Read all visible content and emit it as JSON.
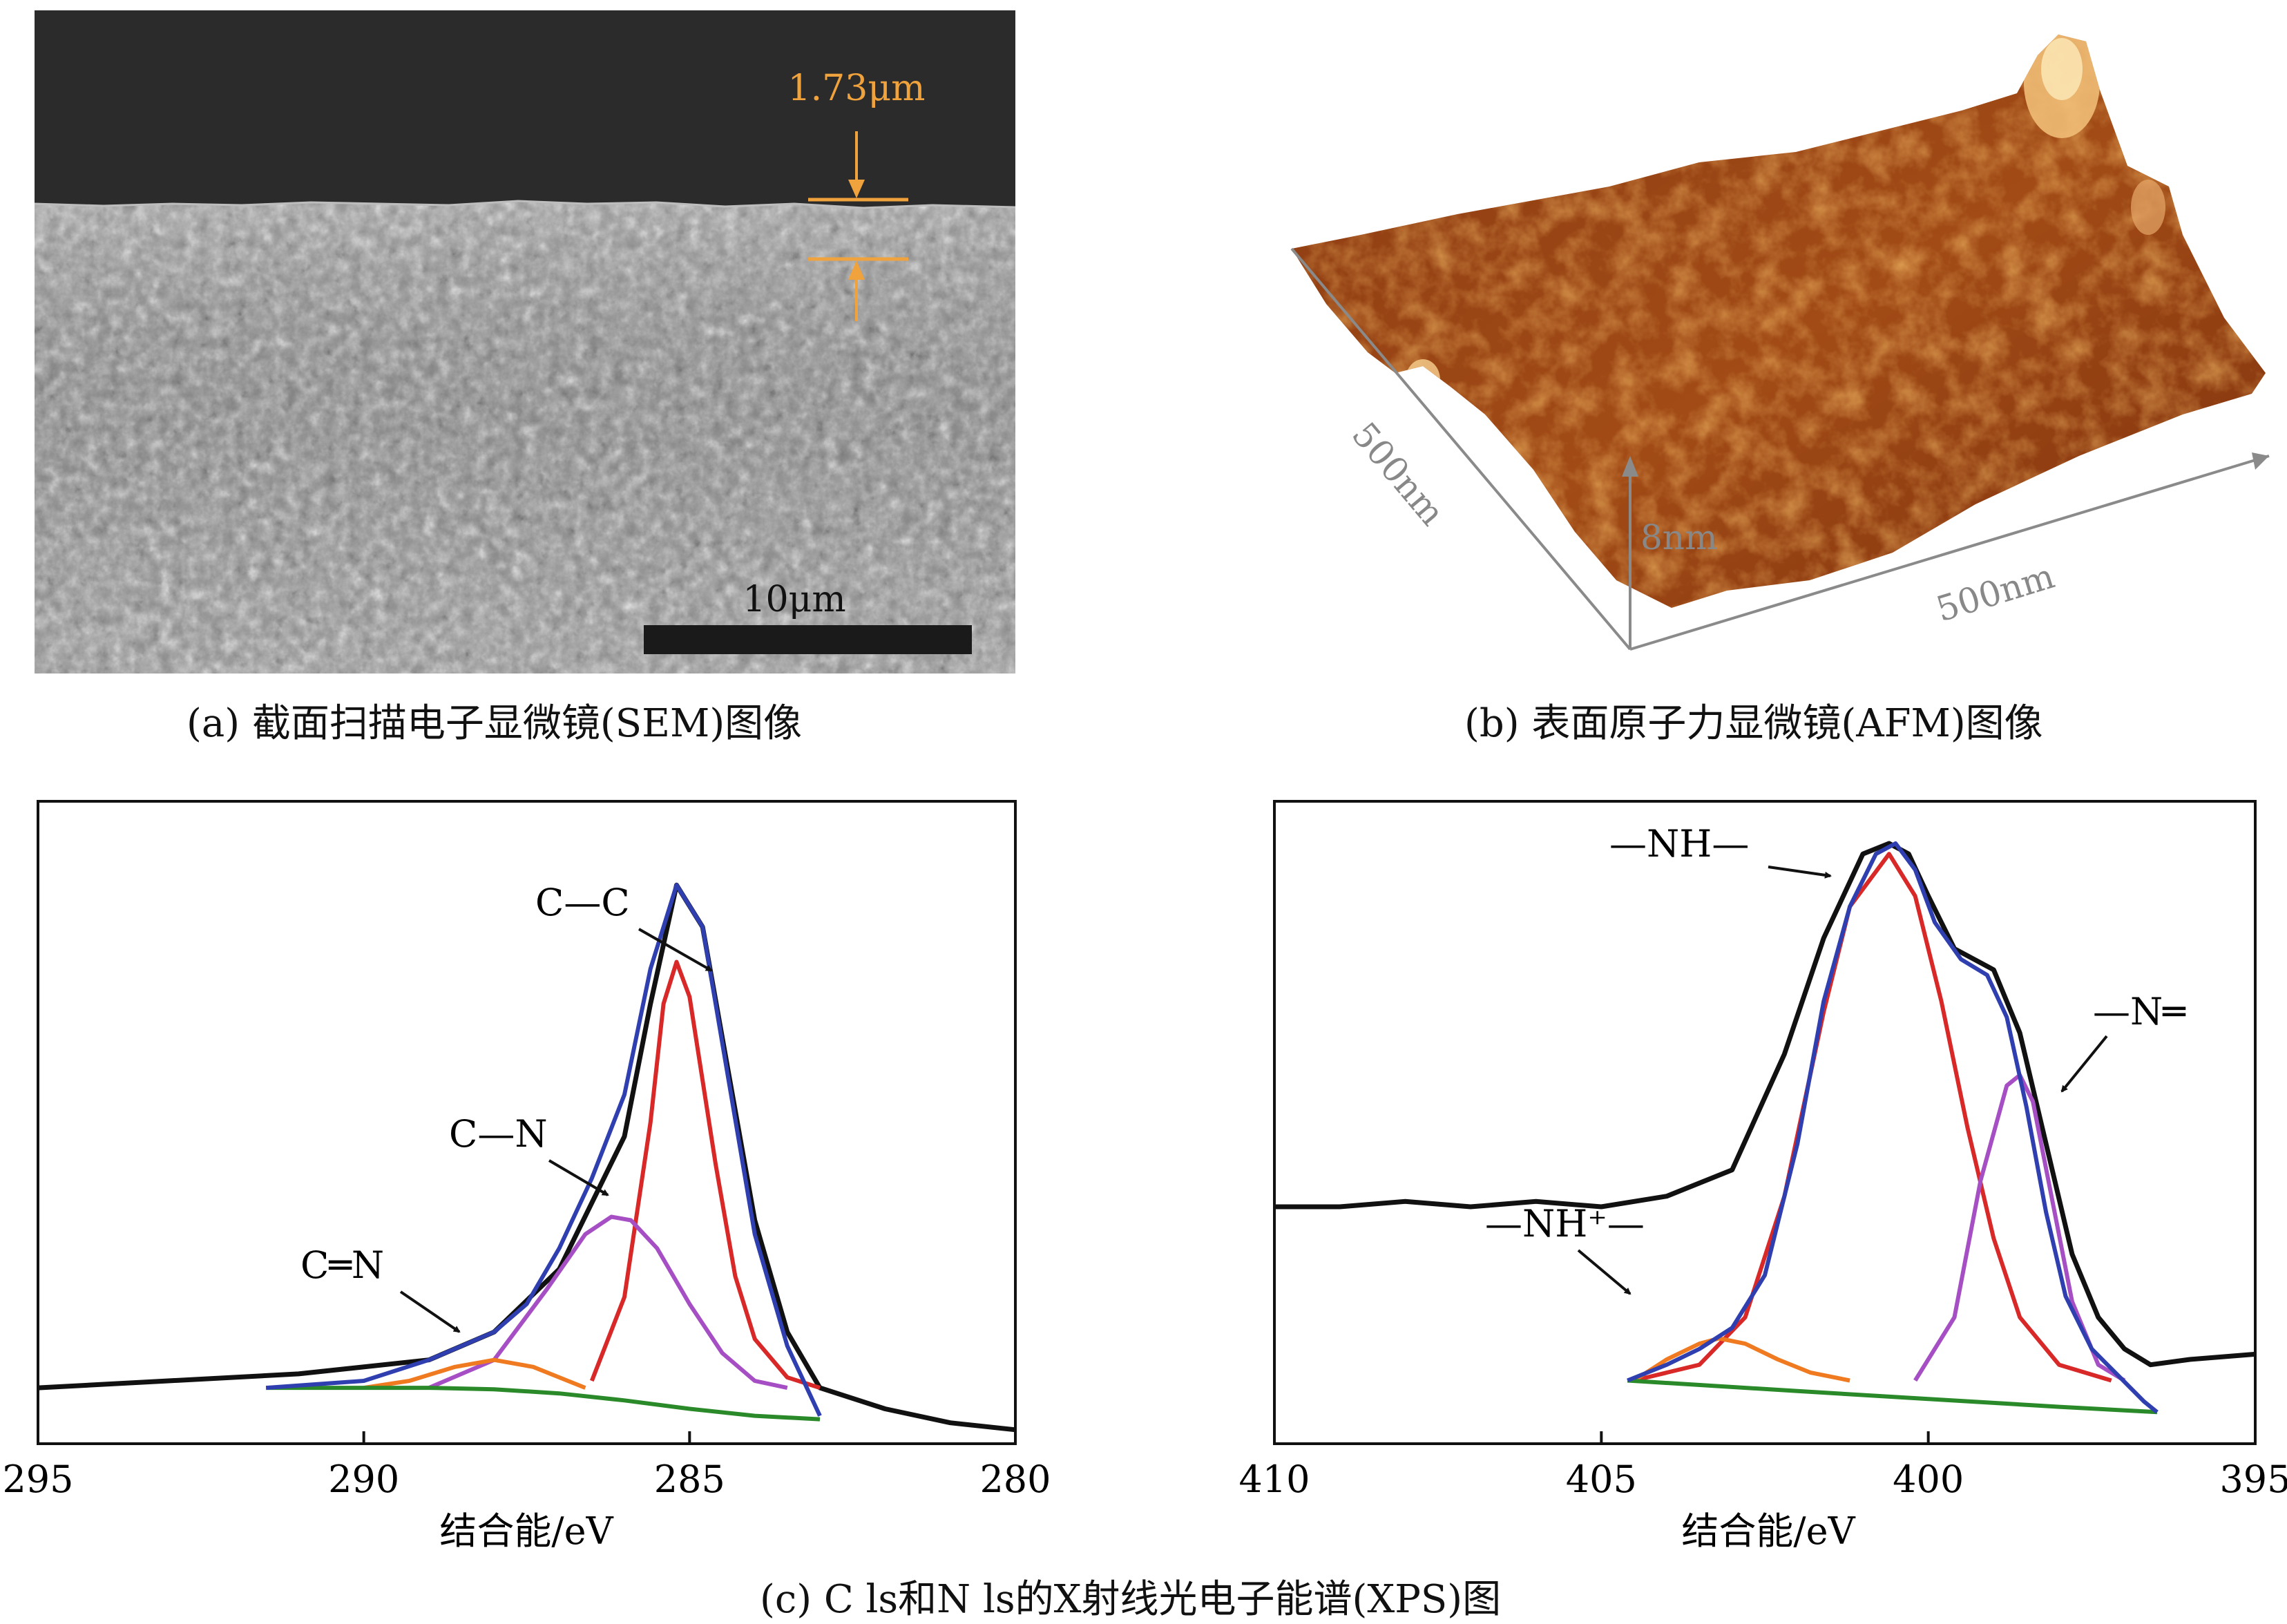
{
  "panel_a": {
    "caption": "(a) 截面扫描电子显微镜(SEM)图像",
    "thickness_label": "1.73μm",
    "scalebar_label": "10μm",
    "accent_color": "#f0a23c"
  },
  "panel_b": {
    "caption": "(b) 表面原子力显微镜(AFM)图像",
    "axis_left_label": "500nm",
    "axis_right_label": "500nm",
    "height_label": "8nm"
  },
  "caption_c": "(c) C ls和N ls的X射线光电子能谱(XPS)图",
  "chart_data": [
    {
      "type": "line",
      "xlabel": "结合能/eV",
      "xlim": [
        295,
        280
      ],
      "x_ticks": [
        295,
        290,
        285,
        280
      ],
      "annotations": [
        "C—C",
        "C—N",
        "C═N"
      ],
      "series": [
        {
          "color": "#111111",
          "x": [
            295,
            293,
            291,
            289,
            288,
            287,
            286,
            285.6,
            285.2,
            284.8,
            284.4,
            284,
            283.5,
            283,
            282,
            281,
            280
          ],
          "y": [
            0.0,
            0.01,
            0.02,
            0.04,
            0.08,
            0.17,
            0.36,
            0.55,
            0.72,
            0.66,
            0.45,
            0.24,
            0.08,
            0.0,
            -0.03,
            -0.05,
            -0.06
          ]
        },
        {
          "color": "#d82828",
          "x": [
            286.5,
            286,
            285.6,
            285.4,
            285.2,
            285.0,
            284.8,
            284.6,
            284.3,
            284,
            283.5,
            283
          ],
          "y": [
            0.01,
            0.13,
            0.38,
            0.55,
            0.61,
            0.56,
            0.44,
            0.32,
            0.16,
            0.07,
            0.015,
            0.0
          ]
        },
        {
          "color": "#a64fc4",
          "x": [
            289,
            288,
            287.2,
            286.6,
            286.2,
            285.9,
            285.5,
            285,
            284.5,
            284,
            283.5
          ],
          "y": [
            0.0,
            0.04,
            0.14,
            0.22,
            0.245,
            0.24,
            0.2,
            0.12,
            0.05,
            0.01,
            0.0
          ]
        },
        {
          "color": "#f07a20",
          "x": [
            290,
            289.3,
            288.6,
            288.0,
            287.4,
            287.0,
            286.6
          ],
          "y": [
            0.0,
            0.01,
            0.03,
            0.04,
            0.03,
            0.015,
            0.0
          ]
        },
        {
          "color": "#2a8a2a",
          "x": [
            291.5,
            289,
            288,
            287,
            286,
            285,
            284,
            283
          ],
          "y": [
            0.0,
            0.0,
            -0.002,
            -0.008,
            -0.018,
            -0.03,
            -0.04,
            -0.045
          ]
        },
        {
          "color": "#2f3fb0",
          "x": [
            291.5,
            290,
            289,
            288.5,
            288,
            287.5,
            287,
            286.5,
            286,
            285.6,
            285.2,
            284.8,
            284.4,
            284,
            283.5,
            283
          ],
          "y": [
            0.0,
            0.01,
            0.04,
            0.06,
            0.08,
            0.12,
            0.2,
            0.3,
            0.42,
            0.6,
            0.72,
            0.66,
            0.44,
            0.22,
            0.06,
            -0.04
          ]
        }
      ]
    },
    {
      "type": "line",
      "xlabel": "结合能/eV",
      "xlim": [
        410,
        395
      ],
      "x_ticks": [
        410,
        405,
        400,
        395
      ],
      "annotations": [
        "—NH—",
        "—N═",
        "—NH⁺—"
      ],
      "series": [
        {
          "color": "#111111",
          "x": [
            410,
            409,
            408,
            407,
            406,
            405,
            404,
            403,
            402.2,
            401.6,
            401,
            400.6,
            400.3,
            400,
            399.6,
            399,
            398.6,
            398.2,
            397.8,
            397.4,
            397,
            396.6,
            396,
            395
          ],
          "y": [
            0.33,
            0.33,
            0.34,
            0.33,
            0.34,
            0.33,
            0.35,
            0.4,
            0.62,
            0.84,
            1.0,
            1.02,
            1.0,
            0.92,
            0.82,
            0.78,
            0.66,
            0.45,
            0.24,
            0.12,
            0.06,
            0.03,
            0.04,
            0.05
          ]
        },
        {
          "color": "#d82828",
          "x": [
            404.5,
            403.5,
            402.8,
            402.2,
            401.6,
            401.2,
            400.6,
            400.2,
            399.8,
            399.4,
            399,
            398.6,
            398,
            397.2
          ],
          "y": [
            0.0,
            0.03,
            0.12,
            0.35,
            0.7,
            0.9,
            1.0,
            0.92,
            0.72,
            0.48,
            0.27,
            0.12,
            0.03,
            0.0
          ]
        },
        {
          "color": "#a64fc4",
          "x": [
            400.2,
            399.6,
            399.2,
            398.8,
            398.6,
            398.4,
            398.1,
            397.8,
            397.4,
            397
          ],
          "y": [
            0.0,
            0.12,
            0.38,
            0.56,
            0.58,
            0.53,
            0.34,
            0.15,
            0.03,
            0.0
          ]
        },
        {
          "color": "#f07a20",
          "x": [
            404.5,
            404,
            403.5,
            403.2,
            402.8,
            402.3,
            401.8,
            401.2
          ],
          "y": [
            0.0,
            0.04,
            0.07,
            0.08,
            0.07,
            0.04,
            0.015,
            0.0
          ]
        },
        {
          "color": "#2a8a2a",
          "x": [
            404.6,
            402,
            400,
            398,
            396.5
          ],
          "y": [
            0.0,
            -0.02,
            -0.035,
            -0.05,
            -0.06
          ]
        },
        {
          "color": "#2f3fb0",
          "x": [
            404.6,
            404,
            403.5,
            403,
            402.5,
            402,
            401.6,
            401.2,
            400.8,
            400.5,
            400.2,
            399.9,
            399.5,
            399.1,
            398.8,
            398.5,
            398.2,
            397.9,
            397.5,
            397.1,
            396.7,
            396.5
          ],
          "y": [
            0.0,
            0.03,
            0.06,
            0.1,
            0.2,
            0.45,
            0.72,
            0.9,
            1.0,
            1.02,
            0.97,
            0.87,
            0.8,
            0.77,
            0.69,
            0.52,
            0.32,
            0.16,
            0.06,
            0.01,
            -0.04,
            -0.06
          ]
        }
      ]
    }
  ]
}
